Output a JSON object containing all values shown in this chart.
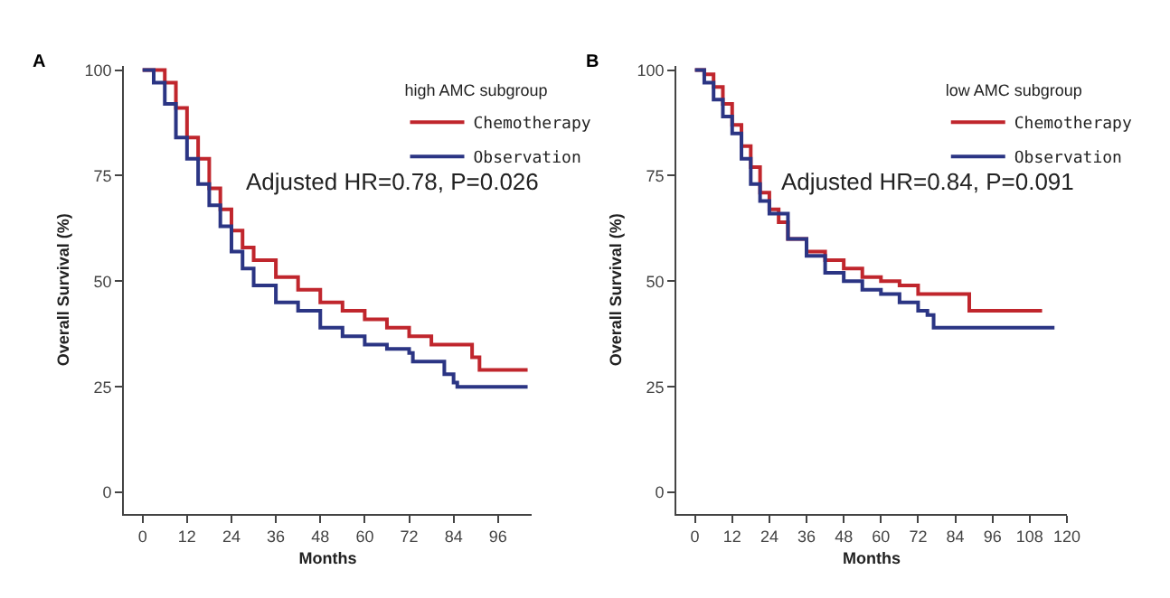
{
  "chart_data": [
    {
      "type": "step",
      "title": "A",
      "legend_title": "high AMC subgroup",
      "xlabel": "Months",
      "ylabel": "Overall Survival (%)",
      "xlim": [
        -5,
        105
      ],
      "xticks": [
        0,
        12,
        24,
        36,
        48,
        60,
        72,
        84,
        96
      ],
      "ylim": [
        -5,
        101
      ],
      "yticks": [
        0,
        25,
        50,
        75,
        100
      ],
      "legend": "top right",
      "line_style": "solid",
      "annotations": [
        "Adjusted HR=0.78, P=0.026"
      ],
      "series": [
        {
          "name": "Chemotherapy",
          "color": "#c0262d",
          "x": [
            0,
            2,
            6,
            9,
            12,
            15,
            18,
            21,
            24,
            27,
            30,
            36,
            42,
            48,
            54,
            60,
            66,
            72,
            78,
            84,
            88,
            89,
            91,
            104
          ],
          "values": [
            100,
            100,
            97,
            91,
            84,
            79,
            72,
            67,
            62,
            58,
            55,
            51,
            48,
            45,
            43,
            41,
            39,
            37,
            35,
            35,
            35,
            32,
            29,
            29
          ]
        },
        {
          "name": "Observation",
          "color": "#2b3584",
          "x": [
            0,
            3,
            6,
            9,
            12,
            15,
            18,
            21,
            24,
            27,
            30,
            36,
            42,
            48,
            54,
            60,
            66,
            72,
            73,
            80,
            81.5,
            84,
            85,
            104
          ],
          "values": [
            100,
            97,
            92,
            84,
            79,
            73,
            68,
            63,
            57,
            53,
            49,
            45,
            43,
            39,
            37,
            35,
            34,
            33,
            31,
            31,
            28,
            26,
            25,
            25
          ]
        }
      ]
    },
    {
      "type": "step",
      "title": "B",
      "legend_title": "low AMC subgroup",
      "xlabel": "Months",
      "ylabel": "Overall Survival (%)",
      "xlim": [
        -6,
        120
      ],
      "xticks": [
        0,
        12,
        24,
        36,
        48,
        60,
        72,
        84,
        96,
        108,
        120
      ],
      "ylim": [
        -5,
        101
      ],
      "yticks": [
        0,
        25,
        50,
        75,
        100
      ],
      "legend": "top right",
      "line_style": "solid",
      "annotations": [
        "Adjusted HR=0.84, P=0.091"
      ],
      "series": [
        {
          "name": "Chemotherapy",
          "color": "#c0262d",
          "x": [
            0,
            3,
            6,
            9,
            12,
            15,
            18,
            21,
            24,
            27,
            30,
            36,
            42,
            48,
            54,
            60,
            66,
            72,
            80,
            88,
            88.5,
            112
          ],
          "values": [
            100,
            99,
            96,
            92,
            87,
            82,
            77,
            71,
            67,
            64,
            60,
            57,
            55,
            53,
            51,
            50,
            49,
            47,
            47,
            47,
            43,
            43
          ]
        },
        {
          "name": "Observation",
          "color": "#2b3584",
          "x": [
            0,
            3,
            6,
            9,
            12,
            15,
            18,
            21,
            24,
            30,
            36,
            42,
            48,
            54,
            60,
            66,
            72,
            75,
            77,
            80,
            116
          ],
          "values": [
            100,
            97,
            93,
            89,
            85,
            79,
            73,
            69,
            66,
            60,
            56,
            52,
            50,
            48,
            47,
            45,
            43,
            42,
            39,
            39,
            39
          ]
        }
      ]
    }
  ]
}
